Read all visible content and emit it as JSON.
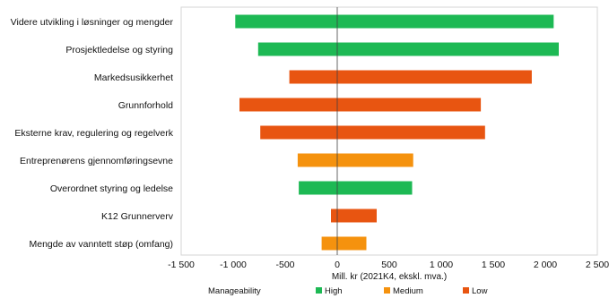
{
  "chart_data": {
    "type": "bar",
    "orientation": "horizontal",
    "xlabel": "Mill. kr (2021K4, ekskl. mva.)",
    "xlim": [
      -1500,
      2500
    ],
    "xticks": [
      -1500,
      -1000,
      -500,
      0,
      500,
      1000,
      1500,
      2000,
      2500
    ],
    "xtick_labels": [
      "-1 500",
      "-1 000",
      "-500",
      "0",
      "500",
      "1 000",
      "1 500",
      "2 000",
      "2 500"
    ],
    "grid": false,
    "legend_placement": "bottom",
    "legend_title": "Manageability",
    "legend": [
      {
        "name": "High",
        "color": "#1db954"
      },
      {
        "name": "Medium",
        "color": "#f5920e"
      },
      {
        "name": "Low",
        "color": "#e85511"
      }
    ],
    "categories": [
      "Videre utvikling i løsninger og mengder",
      "Prosjektledelse og styring",
      "Markedsusikkerhet",
      "Grunnforhold",
      "Eksterne krav, regulering og regelverk",
      "Entreprenørens gjennomføringsevne",
      "Overordnet styring og ledelse",
      "K12 Grunnerverv",
      "Mengde av vanntett støp (omfang)"
    ],
    "bars": [
      {
        "low": -980,
        "high": 2080,
        "manageability": "High"
      },
      {
        "low": -760,
        "high": 2130,
        "manageability": "High"
      },
      {
        "low": -460,
        "high": 1870,
        "manageability": "Low"
      },
      {
        "low": -940,
        "high": 1380,
        "manageability": "Low"
      },
      {
        "low": -740,
        "high": 1420,
        "manageability": "Low"
      },
      {
        "low": -380,
        "high": 730,
        "manageability": "Medium"
      },
      {
        "low": -370,
        "high": 720,
        "manageability": "High"
      },
      {
        "low": -60,
        "high": 380,
        "manageability": "Low"
      },
      {
        "low": -150,
        "high": 280,
        "manageability": "Medium"
      }
    ]
  }
}
